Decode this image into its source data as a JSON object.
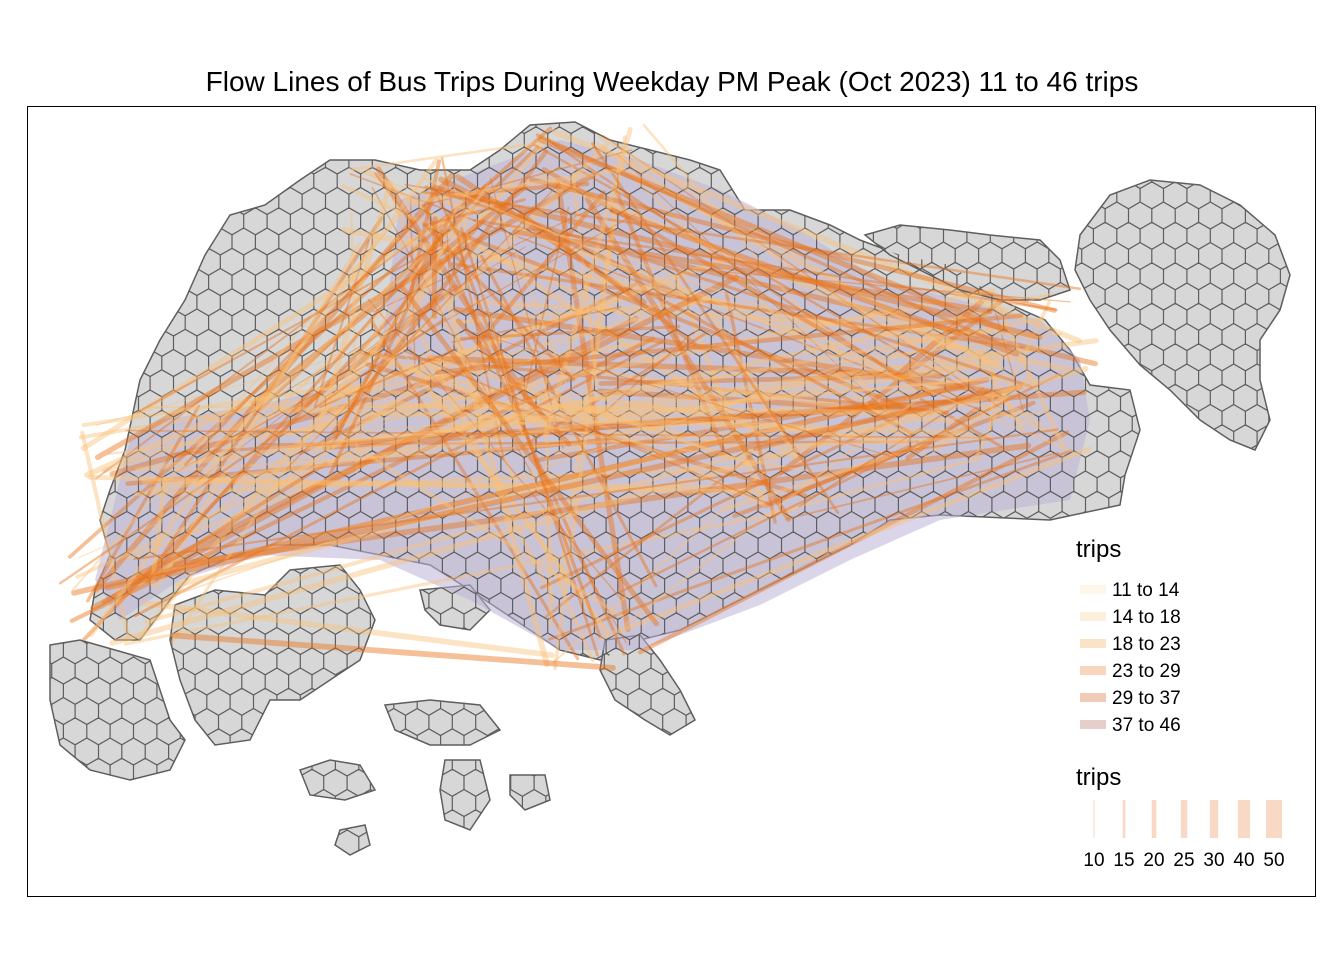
{
  "title": "Flow Lines of Bus Trips During Weekday PM Peak (Oct 2023) 11 to 46 trips",
  "colors": {
    "hex_fill": "#d7d7d7",
    "hex_stroke": "#5e5e5e",
    "zone_tint": "#bdb2d9",
    "flow_color": "#e8741a",
    "flow_light": "#f8c27a",
    "frame": "#000000"
  },
  "map": {
    "features": [
      "mainland",
      "western-islands",
      "southern-islands",
      "pulau-ubin",
      "pulau-tekong"
    ],
    "hexgrid": true,
    "flow_lines": true
  },
  "legend_color": {
    "title": "trips",
    "classes": [
      {
        "label": "11 to 14",
        "color": "#fdf7ea"
      },
      {
        "label": "14 to 18",
        "color": "#fcefdb"
      },
      {
        "label": "18 to 23",
        "color": "#fbe3c8"
      },
      {
        "label": "23 to 29",
        "color": "#f8d6bd"
      },
      {
        "label": "29 to 37",
        "color": "#f0cbb8"
      },
      {
        "label": "37 to 46",
        "color": "#e6cfcb"
      }
    ]
  },
  "legend_width": {
    "title": "trips",
    "breaks": [
      {
        "label": "10",
        "value": 10
      },
      {
        "label": "15",
        "value": 15
      },
      {
        "label": "20",
        "value": 20
      },
      {
        "label": "25",
        "value": 25
      },
      {
        "label": "30",
        "value": 30
      },
      {
        "label": "40",
        "value": 40
      },
      {
        "label": "50",
        "value": 50
      }
    ]
  }
}
